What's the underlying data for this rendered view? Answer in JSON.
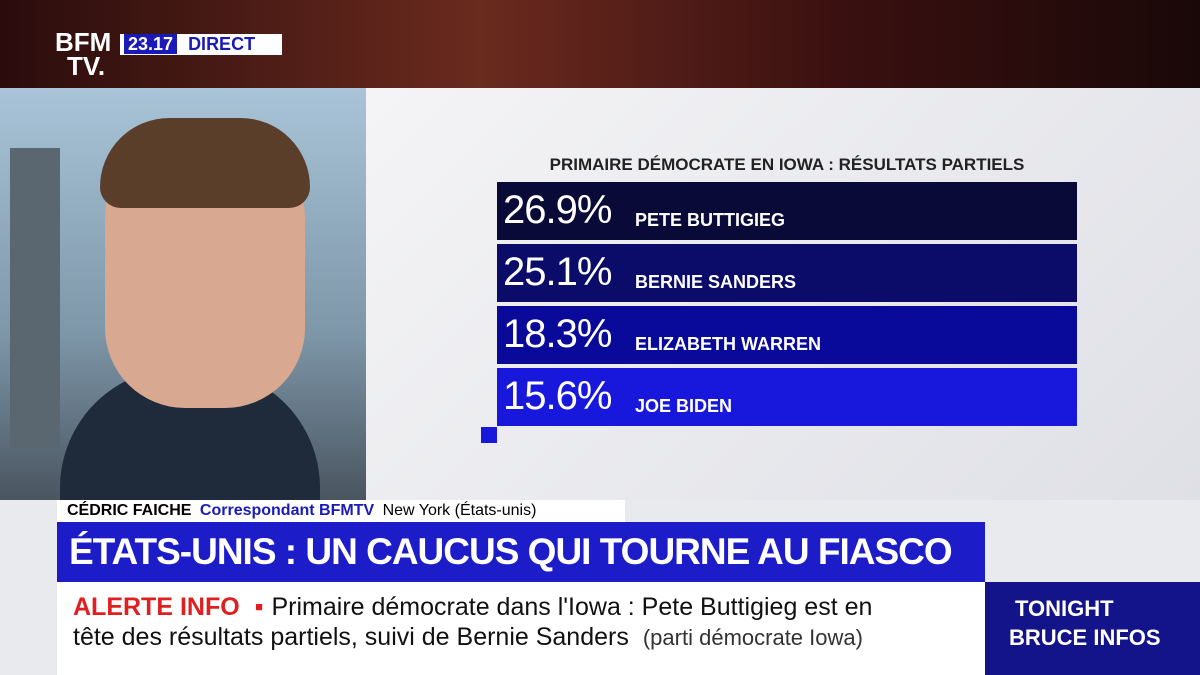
{
  "header": {
    "logo_top": "BFM",
    "logo_bottom": "TV.",
    "time": "23.17",
    "live": "DIRECT"
  },
  "results": {
    "title": "PRIMAIRE DÉMOCRATE EN IOWA : RÉSULTATS PARTIELS",
    "rows": [
      {
        "pct": "26.9%",
        "name": "PETE BUTTIGIEG"
      },
      {
        "pct": "25.1%",
        "name": "BERNIE SANDERS"
      },
      {
        "pct": "18.3%",
        "name": "ELIZABETH WARREN"
      },
      {
        "pct": "15.6%",
        "name": "JOE BIDEN"
      }
    ]
  },
  "lower_third": {
    "name": "CÉDRIC FAICHE",
    "role": "Correspondant BFMTV",
    "location": "New York (États-unis)",
    "headline": "ÉTATS-UNIS : UN CAUCUS QUI TOURNE AU FIASCO"
  },
  "ticker": {
    "label": "ALERTE INFO",
    "line1": "Primaire démocrate dans l'Iowa : Pete Buttigieg est en",
    "line2": "tête des résultats partiels, suivi de Bernie Sanders",
    "source": "(parti démocrate Iowa)"
  },
  "promo": {
    "line1": "TONIGHT",
    "line2": "BRUCE INFOS"
  }
}
